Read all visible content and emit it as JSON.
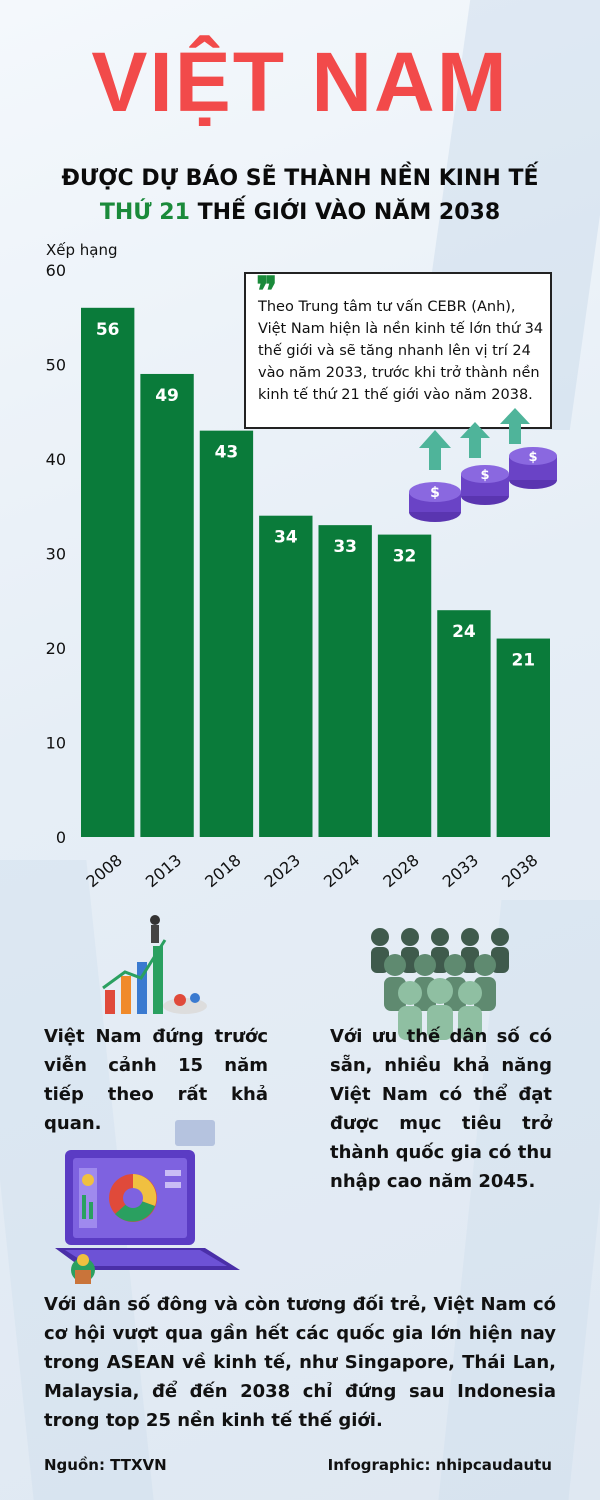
{
  "header": {
    "title": "VIỆT NAM",
    "subtitle_line1": "ĐƯỢC DỰ BÁO SẼ THÀNH NỀN KINH TẾ",
    "subtitle_highlight": "THỨ 21",
    "subtitle_line2_rest": " THẾ GIỚI VÀO NĂM 2038"
  },
  "colors": {
    "title": "#f24a4a",
    "bar": "#0a7b3a",
    "highlight": "#1a8a3a",
    "coin": "#7b4fd6"
  },
  "chart_data": {
    "type": "bar",
    "categories": [
      "2008",
      "2013",
      "2018",
      "2023",
      "2024",
      "2028",
      "2033",
      "2038"
    ],
    "values": [
      56,
      49,
      43,
      34,
      33,
      32,
      24,
      21
    ],
    "ylabel": "Xếp hạng",
    "ylim": [
      0,
      60
    ],
    "yticks": [
      0,
      10,
      20,
      30,
      40,
      50,
      60
    ],
    "grid": false,
    "data_labels": true
  },
  "quote": {
    "mark": "❞",
    "text": "Theo Trung tâm tư vấn CEBR (Anh), Việt Nam hiện là nền kinh tế lớn thứ 34 thế giới và sẽ tăng nhanh lên vị trí 24 vào năm 2033, trước khi trở thành nền kinh tế thứ 21 thế giới vào năm 2038."
  },
  "paragraphs": {
    "left": "Việt Nam đứng trước viễn cảnh 15 năm tiếp theo rất khả quan.",
    "right": "Với ưu thế dân số có sẵn, nhiều khả năng Việt Nam có thể đạt được mục tiêu trở thành quốc gia có thu nhập cao năm 2045.",
    "bottom": "Với dân số đông và còn tương đối trẻ, Việt Nam có cơ hội vượt qua gần hết các quốc gia lớn hiện nay trong ASEAN về kinh tế, như Singapore, Thái Lan, Malaysia, để đến 2038 chỉ đứng sau Indonesia trong top 25 nền kinh tế thế giới."
  },
  "footer": {
    "source": "Nguồn: TTXVN",
    "credit": "Infographic: nhipcaudautu"
  }
}
